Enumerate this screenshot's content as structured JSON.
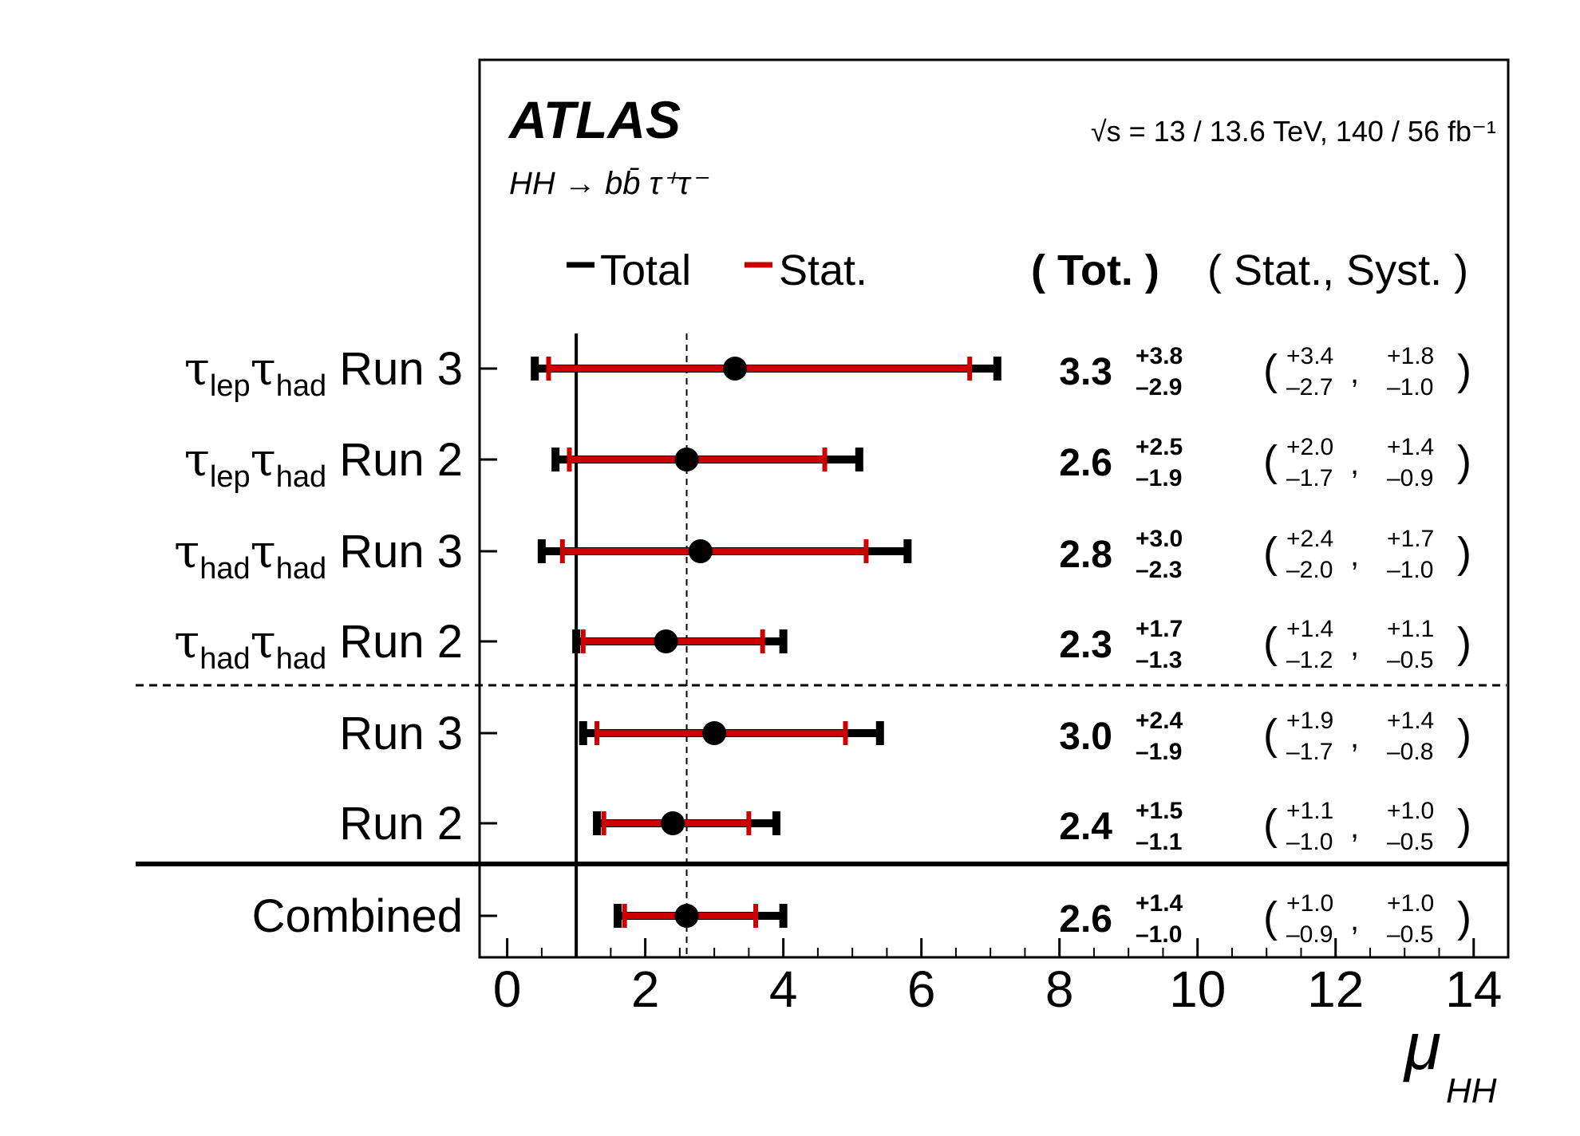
{
  "header": {
    "experiment": "ATLAS",
    "process": "HH → bb̄ τ⁺τ⁻",
    "energy": "√s = 13 / 13.6 TeV, 140 / 56 fb⁻¹"
  },
  "legend": {
    "total_label": "Total",
    "stat_label": "Stat.",
    "tot_header": "( Tot. )",
    "stat_syst_header": "( Stat., Syst. )"
  },
  "chart_data": {
    "type": "forest",
    "xlabel": "μ_HH",
    "xlim": [
      -0.4,
      14.5
    ],
    "xticks": [
      0,
      2,
      4,
      6,
      8,
      10,
      12,
      14
    ],
    "xtick_labels": [
      "0",
      "2",
      "4",
      "6",
      "8",
      "10",
      "12",
      "14"
    ],
    "sm_reference": 1.0,
    "combined_reference": 2.6,
    "colors": {
      "total": "#000000",
      "stat": "#cc0000"
    },
    "rows": [
      {
        "label_main": "τ",
        "sub1": "lep",
        "main2": "τ",
        "sub2": "had",
        "suffix": " Run 3",
        "central": 3.3,
        "total_up": 3.8,
        "total_down": 2.9,
        "stat_up": 3.4,
        "stat_down": 2.7,
        "syst_up": 1.8,
        "syst_down": 1.0,
        "text_central": "3.3",
        "text_total_up": "+3.8",
        "text_total_down": "–2.9",
        "text_stat_up": "+3.4",
        "text_stat_down": "–2.7",
        "text_syst_up": "+1.8",
        "text_syst_down": "–1.0"
      },
      {
        "label_main": "τ",
        "sub1": "lep",
        "main2": "τ",
        "sub2": "had",
        "suffix": " Run 2",
        "central": 2.6,
        "total_up": 2.5,
        "total_down": 1.9,
        "stat_up": 2.0,
        "stat_down": 1.7,
        "syst_up": 1.4,
        "syst_down": 0.9,
        "text_central": "2.6",
        "text_total_up": "+2.5",
        "text_total_down": "–1.9",
        "text_stat_up": "+2.0",
        "text_stat_down": "–1.7",
        "text_syst_up": "+1.4",
        "text_syst_down": "–0.9"
      },
      {
        "label_main": "τ",
        "sub1": "had",
        "main2": "τ",
        "sub2": "had",
        "suffix": " Run 3",
        "central": 2.8,
        "total_up": 3.0,
        "total_down": 2.3,
        "stat_up": 2.4,
        "stat_down": 2.0,
        "syst_up": 1.7,
        "syst_down": 1.0,
        "text_central": "2.8",
        "text_total_up": "+3.0",
        "text_total_down": "–2.3",
        "text_stat_up": "+2.4",
        "text_stat_down": "–2.0",
        "text_syst_up": "+1.7",
        "text_syst_down": "–1.0"
      },
      {
        "label_main": "τ",
        "sub1": "had",
        "main2": "τ",
        "sub2": "had",
        "suffix": " Run 2",
        "central": 2.3,
        "total_up": 1.7,
        "total_down": 1.3,
        "stat_up": 1.4,
        "stat_down": 1.2,
        "syst_up": 1.1,
        "syst_down": 0.5,
        "text_central": "2.3",
        "text_total_up": "+1.7",
        "text_total_down": "–1.3",
        "text_stat_up": "+1.4",
        "text_stat_down": "–1.2",
        "text_syst_up": "+1.1",
        "text_syst_down": "–0.5"
      },
      {
        "label_main": "",
        "sub1": "",
        "main2": "",
        "sub2": "",
        "suffix": "Run 3",
        "central": 3.0,
        "total_up": 2.4,
        "total_down": 1.9,
        "stat_up": 1.9,
        "stat_down": 1.7,
        "syst_up": 1.4,
        "syst_down": 0.8,
        "text_central": "3.0",
        "text_total_up": "+2.4",
        "text_total_down": "–1.9",
        "text_stat_up": "+1.9",
        "text_stat_down": "–1.7",
        "text_syst_up": "+1.4",
        "text_syst_down": "–0.8"
      },
      {
        "label_main": "",
        "sub1": "",
        "main2": "",
        "sub2": "",
        "suffix": "Run 2",
        "central": 2.4,
        "total_up": 1.5,
        "total_down": 1.1,
        "stat_up": 1.1,
        "stat_down": 1.0,
        "syst_up": 1.0,
        "syst_down": 0.5,
        "text_central": "2.4",
        "text_total_up": "+1.5",
        "text_total_down": "–1.1",
        "text_stat_up": "+1.1",
        "text_stat_down": "–1.0",
        "text_syst_up": "+1.0",
        "text_syst_down": "–0.5"
      },
      {
        "label_main": "",
        "sub1": "",
        "main2": "",
        "sub2": "",
        "suffix": "Combined",
        "central": 2.6,
        "total_up": 1.4,
        "total_down": 1.0,
        "stat_up": 1.0,
        "stat_down": 0.9,
        "syst_up": 1.0,
        "syst_down": 0.5,
        "text_central": "2.6",
        "text_total_up": "+1.4",
        "text_total_down": "–1.0",
        "text_stat_up": "+1.0",
        "text_stat_down": "–0.9",
        "text_syst_up": "+1.0",
        "text_syst_down": "–0.5"
      }
    ]
  }
}
